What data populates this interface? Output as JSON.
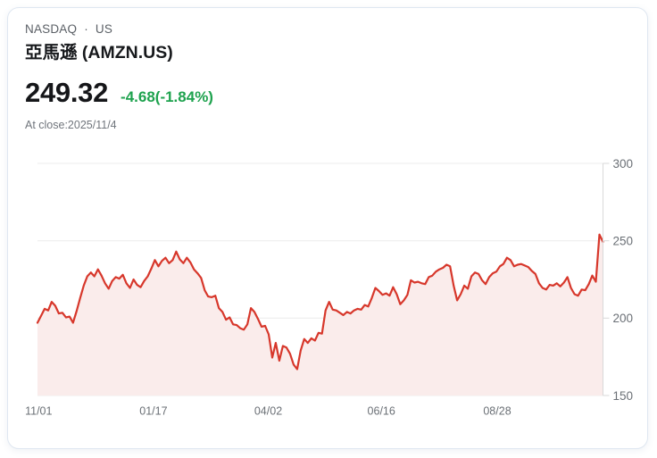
{
  "header": {
    "exchange": "NASDAQ",
    "separator": "·",
    "market": "US",
    "stock_name": "亞馬遜 (AMZN.US)"
  },
  "quote": {
    "last_price": "249.32",
    "change_text": "-4.68(-1.84%)",
    "change_color": "#1ea24e",
    "as_of": "At close:2025/11/4"
  },
  "chart_data": {
    "type": "area",
    "title": "AMZN.US daily close, 1 year",
    "xlabel": "",
    "ylabel": "",
    "ylim": [
      150,
      300
    ],
    "yticks": [
      300,
      250,
      200,
      150
    ],
    "y_axis_position": "right",
    "grid": true,
    "x_ticks": [
      {
        "label": "11/01",
        "pos": 0.002
      },
      {
        "label": "01/17",
        "pos": 0.205
      },
      {
        "label": "04/02",
        "pos": 0.408
      },
      {
        "label": "06/16",
        "pos": 0.608
      },
      {
        "label": "08/28",
        "pos": 0.813
      }
    ],
    "line_color": "#d7372b",
    "fill_color": "#faeceb",
    "values": [
      197,
      201.5,
      206,
      205,
      210.5,
      208,
      203,
      203.5,
      200.5,
      201,
      197,
      204.5,
      213,
      221,
      227,
      229.5,
      227,
      231.5,
      227.5,
      222.5,
      219,
      224,
      226.5,
      225.5,
      228,
      222.5,
      219.5,
      225,
      221.5,
      220,
      224,
      227,
      232,
      237.5,
      233.5,
      237,
      239,
      235.5,
      237.5,
      243,
      238,
      235.5,
      239,
      236,
      231.5,
      229,
      226,
      218,
      214,
      213.5,
      214.5,
      206.5,
      204,
      199,
      200.5,
      196,
      195.5,
      193.5,
      192.5,
      196,
      206.5,
      204,
      199.5,
      194.5,
      195,
      189.5,
      174.5,
      184,
      172.5,
      182,
      181,
      177,
      170,
      167,
      179,
      186.5,
      184,
      187,
      185.5,
      190.5,
      190,
      205,
      210.5,
      205.5,
      205,
      203.5,
      202,
      204,
      203,
      205,
      206,
      205.5,
      208.5,
      207.5,
      213,
      219.5,
      217.5,
      215,
      216,
      214.5,
      220,
      215.5,
      209,
      211.5,
      215,
      224.5,
      223,
      223.5,
      222.5,
      222,
      226.5,
      227.5,
      230,
      231.5,
      232.5,
      234.5,
      233.5,
      221,
      211.5,
      215.5,
      221,
      219,
      227,
      229.5,
      228.5,
      224.5,
      222,
      226.5,
      229,
      230,
      233.5,
      235,
      239,
      237.5,
      233.5,
      234.5,
      235,
      234,
      233,
      230.5,
      228.5,
      222.5,
      219.5,
      218.5,
      221.5,
      221,
      222.5,
      220.5,
      223,
      226.5,
      219.5,
      215.5,
      214.5,
      218.5,
      218,
      222,
      227.5,
      223.5,
      254,
      249.3
    ]
  }
}
